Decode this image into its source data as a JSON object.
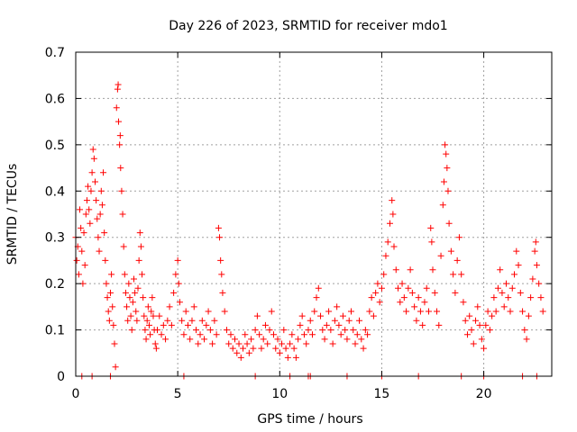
{
  "chart_data": {
    "type": "scatter",
    "title": "Day 226 of 2023, SRMTID for receiver mdo1",
    "xlabel": "GPS time / hours",
    "ylabel": "SRMTID / TECUs",
    "xlim": [
      0,
      23.333
    ],
    "ylim": [
      0,
      0.7
    ],
    "xticks": [
      0,
      5,
      10,
      15,
      20
    ],
    "yticks": [
      0,
      0.1,
      0.2,
      0.3,
      0.4,
      0.5,
      0.6,
      0.7
    ],
    "xtick_labels": [
      "0",
      "5",
      "10",
      "15",
      "20"
    ],
    "ytick_labels": [
      "0",
      "0.1",
      "0.2",
      "0.3",
      "0.4",
      "0.5",
      "0.6",
      "0.7"
    ],
    "grid": true,
    "marker": "+",
    "marker_color": "#ff0000",
    "series": [
      {
        "name": "SRMTID",
        "points": [
          [
            0.0,
            0.3
          ],
          [
            0.05,
            0.25
          ],
          [
            0.1,
            0.28
          ],
          [
            0.15,
            0.22
          ],
          [
            0.2,
            0.36
          ],
          [
            0.25,
            0.32
          ],
          [
            0.3,
            0.27
          ],
          [
            0.35,
            0.2
          ],
          [
            0.4,
            0.31
          ],
          [
            0.45,
            0.24
          ],
          [
            0.5,
            0.35
          ],
          [
            0.55,
            0.38
          ],
          [
            0.6,
            0.41
          ],
          [
            0.65,
            0.36
          ],
          [
            0.7,
            0.33
          ],
          [
            0.75,
            0.4
          ],
          [
            0.8,
            0.44
          ],
          [
            0.85,
            0.49
          ],
          [
            0.9,
            0.47
          ],
          [
            0.95,
            0.42
          ],
          [
            1.0,
            0.38
          ],
          [
            1.05,
            0.34
          ],
          [
            1.1,
            0.3
          ],
          [
            1.15,
            0.27
          ],
          [
            1.2,
            0.35
          ],
          [
            1.25,
            0.4
          ],
          [
            1.3,
            0.37
          ],
          [
            1.35,
            0.44
          ],
          [
            1.4,
            0.31
          ],
          [
            1.45,
            0.25
          ],
          [
            1.5,
            0.2
          ],
          [
            1.55,
            0.17
          ],
          [
            1.6,
            0.14
          ],
          [
            1.65,
            0.12
          ],
          [
            1.7,
            0.18
          ],
          [
            1.75,
            0.22
          ],
          [
            1.8,
            0.15
          ],
          [
            1.85,
            0.11
          ],
          [
            1.9,
            0.07
          ],
          [
            1.95,
            0.02
          ],
          [
            2.0,
            0.58
          ],
          [
            2.05,
            0.62
          ],
          [
            2.08,
            0.63
          ],
          [
            2.1,
            0.55
          ],
          [
            2.15,
            0.5
          ],
          [
            2.18,
            0.52
          ],
          [
            2.2,
            0.45
          ],
          [
            2.25,
            0.4
          ],
          [
            2.3,
            0.35
          ],
          [
            2.35,
            0.28
          ],
          [
            2.4,
            0.22
          ],
          [
            2.45,
            0.18
          ],
          [
            2.5,
            0.15
          ],
          [
            2.55,
            0.12
          ],
          [
            2.6,
            0.2
          ],
          [
            2.65,
            0.17
          ],
          [
            2.7,
            0.13
          ],
          [
            2.75,
            0.1
          ],
          [
            2.8,
            0.16
          ],
          [
            2.85,
            0.21
          ],
          [
            2.9,
            0.18
          ],
          [
            2.95,
            0.14
          ],
          [
            3.0,
            0.12
          ],
          [
            3.05,
            0.19
          ],
          [
            3.1,
            0.25
          ],
          [
            3.15,
            0.31
          ],
          [
            3.2,
            0.28
          ],
          [
            3.25,
            0.22
          ],
          [
            3.3,
            0.17
          ],
          [
            3.35,
            0.13
          ],
          [
            3.4,
            0.1
          ],
          [
            3.45,
            0.08
          ],
          [
            3.5,
            0.12
          ],
          [
            3.55,
            0.15
          ],
          [
            3.6,
            0.11
          ],
          [
            3.65,
            0.09
          ],
          [
            3.7,
            0.14
          ],
          [
            3.75,
            0.17
          ],
          [
            3.8,
            0.13
          ],
          [
            3.85,
            0.1
          ],
          [
            3.9,
            0.07
          ],
          [
            3.95,
            0.06
          ],
          [
            4.0,
            0.1
          ],
          [
            4.1,
            0.13
          ],
          [
            4.2,
            0.09
          ],
          [
            4.3,
            0.11
          ],
          [
            4.4,
            0.08
          ],
          [
            4.5,
            0.12
          ],
          [
            4.6,
            0.15
          ],
          [
            4.7,
            0.11
          ],
          [
            4.8,
            0.18
          ],
          [
            4.9,
            0.22
          ],
          [
            5.0,
            0.25
          ],
          [
            5.05,
            0.2
          ],
          [
            5.1,
            0.16
          ],
          [
            5.2,
            0.12
          ],
          [
            5.3,
            0.09
          ],
          [
            5.4,
            0.14
          ],
          [
            5.5,
            0.11
          ],
          [
            5.6,
            0.08
          ],
          [
            5.7,
            0.12
          ],
          [
            5.8,
            0.15
          ],
          [
            5.9,
            0.1
          ],
          [
            6.0,
            0.07
          ],
          [
            6.1,
            0.09
          ],
          [
            6.2,
            0.12
          ],
          [
            6.3,
            0.08
          ],
          [
            6.4,
            0.11
          ],
          [
            6.5,
            0.14
          ],
          [
            6.6,
            0.1
          ],
          [
            6.7,
            0.07
          ],
          [
            6.8,
            0.12
          ],
          [
            6.9,
            0.09
          ],
          [
            7.0,
            0.32
          ],
          [
            7.05,
            0.3
          ],
          [
            7.1,
            0.25
          ],
          [
            7.15,
            0.22
          ],
          [
            7.2,
            0.18
          ],
          [
            7.3,
            0.14
          ],
          [
            7.4,
            0.1
          ],
          [
            7.5,
            0.07
          ],
          [
            7.6,
            0.09
          ],
          [
            7.7,
            0.06
          ],
          [
            7.8,
            0.08
          ],
          [
            7.9,
            0.05
          ],
          [
            8.0,
            0.07
          ],
          [
            8.1,
            0.04
          ],
          [
            8.2,
            0.06
          ],
          [
            8.3,
            0.09
          ],
          [
            8.4,
            0.07
          ],
          [
            8.5,
            0.05
          ],
          [
            8.6,
            0.08
          ],
          [
            8.7,
            0.06
          ],
          [
            8.8,
            0.1
          ],
          [
            8.9,
            0.13
          ],
          [
            9.0,
            0.09
          ],
          [
            9.1,
            0.06
          ],
          [
            9.2,
            0.08
          ],
          [
            9.3,
            0.11
          ],
          [
            9.4,
            0.07
          ],
          [
            9.5,
            0.1
          ],
          [
            9.6,
            0.14
          ],
          [
            9.7,
            0.09
          ],
          [
            9.8,
            0.06
          ],
          [
            9.9,
            0.08
          ],
          [
            10.0,
            0.05
          ],
          [
            10.1,
            0.07
          ],
          [
            10.2,
            0.1
          ],
          [
            10.3,
            0.06
          ],
          [
            10.4,
            0.04
          ],
          [
            10.5,
            0.07
          ],
          [
            10.6,
            0.09
          ],
          [
            10.7,
            0.06
          ],
          [
            10.8,
            0.04
          ],
          [
            10.9,
            0.08
          ],
          [
            11.0,
            0.11
          ],
          [
            11.1,
            0.13
          ],
          [
            11.2,
            0.09
          ],
          [
            11.3,
            0.07
          ],
          [
            11.4,
            0.1
          ],
          [
            11.5,
            0.12
          ],
          [
            11.6,
            0.09
          ],
          [
            11.7,
            0.14
          ],
          [
            11.8,
            0.17
          ],
          [
            11.9,
            0.19
          ],
          [
            12.0,
            0.13
          ],
          [
            12.1,
            0.1
          ],
          [
            12.2,
            0.08
          ],
          [
            12.3,
            0.11
          ],
          [
            12.4,
            0.14
          ],
          [
            12.5,
            0.1
          ],
          [
            12.6,
            0.07
          ],
          [
            12.7,
            0.12
          ],
          [
            12.8,
            0.15
          ],
          [
            12.9,
            0.11
          ],
          [
            13.0,
            0.09
          ],
          [
            13.1,
            0.13
          ],
          [
            13.2,
            0.1
          ],
          [
            13.3,
            0.08
          ],
          [
            13.4,
            0.12
          ],
          [
            13.5,
            0.14
          ],
          [
            13.6,
            0.1
          ],
          [
            13.7,
            0.07
          ],
          [
            13.8,
            0.09
          ],
          [
            13.9,
            0.12
          ],
          [
            14.0,
            0.08
          ],
          [
            14.1,
            0.06
          ],
          [
            14.2,
            0.1
          ],
          [
            14.3,
            0.09
          ],
          [
            14.4,
            0.14
          ],
          [
            14.5,
            0.17
          ],
          [
            14.6,
            0.13
          ],
          [
            14.7,
            0.18
          ],
          [
            14.8,
            0.2
          ],
          [
            14.9,
            0.16
          ],
          [
            15.0,
            0.19
          ],
          [
            15.1,
            0.22
          ],
          [
            15.2,
            0.26
          ],
          [
            15.3,
            0.29
          ],
          [
            15.4,
            0.33
          ],
          [
            15.5,
            0.38
          ],
          [
            15.55,
            0.35
          ],
          [
            15.6,
            0.28
          ],
          [
            15.7,
            0.23
          ],
          [
            15.8,
            0.19
          ],
          [
            15.9,
            0.16
          ],
          [
            16.0,
            0.2
          ],
          [
            16.1,
            0.17
          ],
          [
            16.2,
            0.14
          ],
          [
            16.3,
            0.19
          ],
          [
            16.4,
            0.23
          ],
          [
            16.5,
            0.18
          ],
          [
            16.6,
            0.15
          ],
          [
            16.7,
            0.12
          ],
          [
            16.8,
            0.17
          ],
          [
            16.9,
            0.14
          ],
          [
            17.0,
            0.11
          ],
          [
            17.1,
            0.16
          ],
          [
            17.2,
            0.19
          ],
          [
            17.3,
            0.14
          ],
          [
            17.4,
            0.32
          ],
          [
            17.45,
            0.29
          ],
          [
            17.5,
            0.23
          ],
          [
            17.6,
            0.18
          ],
          [
            17.7,
            0.14
          ],
          [
            17.8,
            0.11
          ],
          [
            17.9,
            0.26
          ],
          [
            18.0,
            0.37
          ],
          [
            18.05,
            0.42
          ],
          [
            18.1,
            0.5
          ],
          [
            18.15,
            0.48
          ],
          [
            18.2,
            0.45
          ],
          [
            18.25,
            0.4
          ],
          [
            18.3,
            0.33
          ],
          [
            18.4,
            0.27
          ],
          [
            18.5,
            0.22
          ],
          [
            18.6,
            0.18
          ],
          [
            18.7,
            0.25
          ],
          [
            18.8,
            0.3
          ],
          [
            18.9,
            0.22
          ],
          [
            19.0,
            0.16
          ],
          [
            19.1,
            0.12
          ],
          [
            19.2,
            0.09
          ],
          [
            19.3,
            0.13
          ],
          [
            19.4,
            0.1
          ],
          [
            19.5,
            0.07
          ],
          [
            19.6,
            0.12
          ],
          [
            19.7,
            0.15
          ],
          [
            19.8,
            0.11
          ],
          [
            19.9,
            0.08
          ],
          [
            20.0,
            0.06
          ],
          [
            20.1,
            0.11
          ],
          [
            20.2,
            0.14
          ],
          [
            20.3,
            0.1
          ],
          [
            20.4,
            0.13
          ],
          [
            20.5,
            0.17
          ],
          [
            20.6,
            0.14
          ],
          [
            20.7,
            0.19
          ],
          [
            20.8,
            0.23
          ],
          [
            20.9,
            0.18
          ],
          [
            21.0,
            0.15
          ],
          [
            21.1,
            0.2
          ],
          [
            21.2,
            0.17
          ],
          [
            21.3,
            0.14
          ],
          [
            21.4,
            0.19
          ],
          [
            21.5,
            0.22
          ],
          [
            21.6,
            0.27
          ],
          [
            21.7,
            0.24
          ],
          [
            21.8,
            0.18
          ],
          [
            21.9,
            0.14
          ],
          [
            22.0,
            0.1
          ],
          [
            22.1,
            0.08
          ],
          [
            22.2,
            0.13
          ],
          [
            22.3,
            0.17
          ],
          [
            22.4,
            0.21
          ],
          [
            22.5,
            0.27
          ],
          [
            22.55,
            0.29
          ],
          [
            22.6,
            0.24
          ],
          [
            22.7,
            0.2
          ],
          [
            22.8,
            0.17
          ],
          [
            22.9,
            0.14
          ]
        ]
      }
    ],
    "zero_markers_x": [
      0.3,
      0.8,
      1.7,
      5.3,
      8.8,
      10.5,
      11.4,
      11.5,
      13.3,
      15.0,
      16.8,
      18.9,
      20.0,
      21.9,
      22.6
    ]
  }
}
